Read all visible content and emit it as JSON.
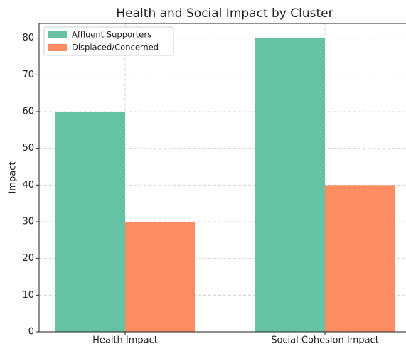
{
  "chart_data": {
    "type": "bar",
    "title": "Health and Social Impact by Cluster",
    "ylabel": "Impact",
    "categories": [
      "Health Impact",
      "Social Cohesion Impact"
    ],
    "series": [
      {
        "name": "Affluent Supporters",
        "color": "#66c2a5",
        "values": [
          60,
          80
        ]
      },
      {
        "name": "Displaced/Concerned",
        "color": "#fc8d62",
        "values": [
          30,
          40
        ]
      }
    ],
    "ylim": [
      0,
      84
    ],
    "yticks": [
      0,
      10,
      20,
      30,
      40,
      50,
      60,
      70,
      80
    ],
    "grid": true,
    "legend": "upper left"
  }
}
